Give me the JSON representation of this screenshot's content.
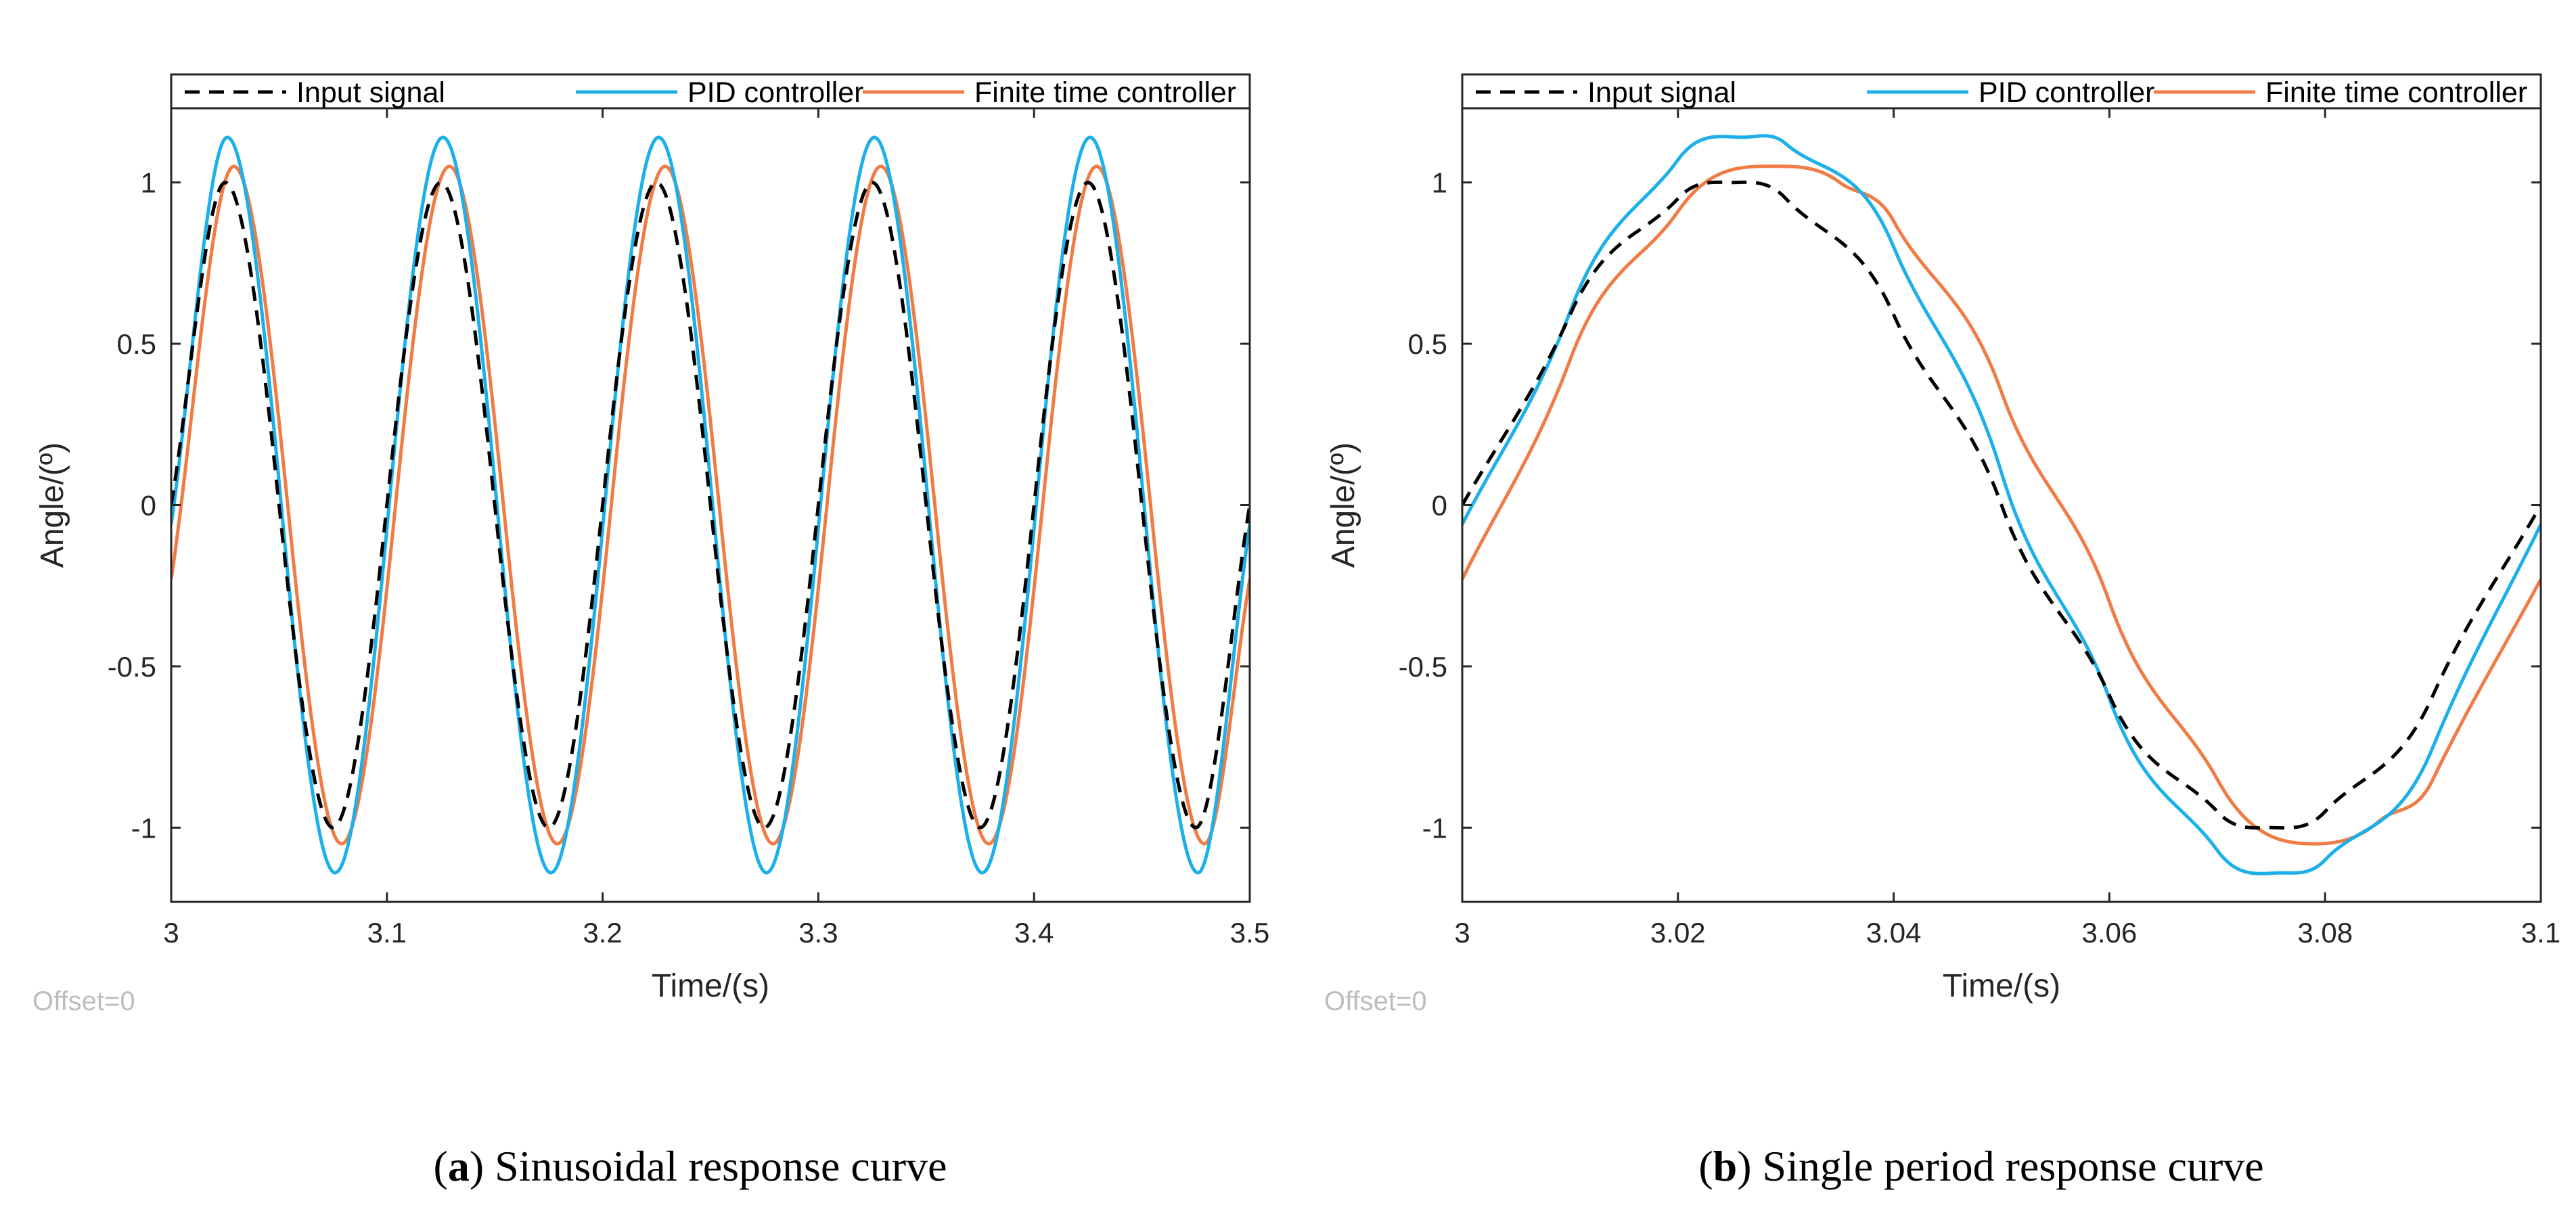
{
  "chart_data": [
    {
      "type": "line",
      "caption_letter": "a",
      "caption_open": "(",
      "caption_close": ") Sinusoidal response curve",
      "xlabel": "Time/(s)",
      "ylabel": "Angle/(º)",
      "offset_text": "Offset=0",
      "xlim": [
        3,
        3.5
      ],
      "ylim": [
        -1.23,
        1.23
      ],
      "x_ticks": [
        3,
        3.1,
        3.2,
        3.3,
        3.4,
        3.5
      ],
      "x_tick_labels": [
        "3",
        "3.1",
        "3.2",
        "3.3",
        "3.4",
        "3.5"
      ],
      "y_ticks": [
        -1,
        -0.5,
        0,
        0.5,
        1
      ],
      "y_tick_labels": [
        "-1",
        "-0.5",
        "0",
        "0.5",
        "1"
      ],
      "grid": false,
      "legend_position": "top",
      "series": [
        {
          "name": "Input signal",
          "style": "dashed",
          "color": "#000000",
          "x": [
            3.0,
            3.025,
            3.05,
            3.075,
            3.1,
            3.125,
            3.15,
            3.175,
            3.2,
            3.225,
            3.25,
            3.275,
            3.3,
            3.325,
            3.35,
            3.375,
            3.4,
            3.425,
            3.45,
            3.475,
            3.5
          ],
          "y": [
            0,
            1,
            0,
            -1,
            0,
            1,
            0,
            -1,
            0,
            1,
            0,
            -1,
            0,
            1,
            0,
            -1,
            0,
            1,
            0,
            -1,
            0
          ]
        },
        {
          "name": "PID controller",
          "style": "solid",
          "color": "#1cb0ea",
          "x": [
            3.0,
            3.026,
            3.051,
            3.076,
            3.101,
            3.126,
            3.151,
            3.176,
            3.201,
            3.226,
            3.251,
            3.276,
            3.301,
            3.326,
            3.351,
            3.376,
            3.401,
            3.426,
            3.451,
            3.476,
            3.5
          ],
          "y": [
            -0.06,
            1.14,
            0,
            -1.14,
            0,
            1.14,
            0,
            -1.14,
            0,
            1.14,
            0,
            -1.14,
            0,
            1.14,
            0,
            -1.14,
            0,
            1.14,
            0,
            -1.14,
            -0.06
          ]
        },
        {
          "name": "Finite time controller",
          "style": "solid",
          "color": "#f07c45",
          "x": [
            3.0,
            3.029,
            3.054,
            3.079,
            3.104,
            3.129,
            3.154,
            3.179,
            3.204,
            3.229,
            3.254,
            3.279,
            3.304,
            3.329,
            3.354,
            3.379,
            3.404,
            3.429,
            3.454,
            3.479,
            3.5
          ],
          "y": [
            -0.23,
            1.05,
            0,
            -1.05,
            0,
            1.05,
            0,
            -1.05,
            0,
            1.05,
            0,
            -1.05,
            0,
            1.05,
            0,
            -1.05,
            0,
            1.05,
            0,
            -1.05,
            -0.23
          ]
        }
      ]
    },
    {
      "type": "line",
      "caption_letter": "b",
      "caption_open": "(",
      "caption_close": ") Single period response curve",
      "xlabel": "Time/(s)",
      "ylabel": "Angle/(º)",
      "offset_text": "Offset=0",
      "xlim": [
        3,
        3.1
      ],
      "ylim": [
        -1.23,
        1.23
      ],
      "x_ticks": [
        3,
        3.02,
        3.04,
        3.06,
        3.08,
        3.1
      ],
      "x_tick_labels": [
        "3",
        "3.02",
        "3.04",
        "3.06",
        "3.08",
        "3.1"
      ],
      "y_ticks": [
        -1,
        -0.5,
        0,
        0.5,
        1
      ],
      "y_tick_labels": [
        "-1",
        "-0.5",
        "0",
        "0.5",
        "1"
      ],
      "grid": false,
      "legend_position": "top",
      "series": [
        {
          "name": "Input signal",
          "style": "dashed",
          "color": "#000000",
          "x": [
            3.0,
            3.01,
            3.02,
            3.025,
            3.03,
            3.04,
            3.05,
            3.06,
            3.07,
            3.075,
            3.08,
            3.09,
            3.1
          ],
          "y": [
            0,
            0.59,
            0.95,
            1.0,
            0.95,
            0.59,
            0,
            -0.59,
            -0.95,
            -1.0,
            -0.95,
            -0.59,
            0
          ]
        },
        {
          "name": "PID controller",
          "style": "solid",
          "color": "#1cb0ea",
          "x": [
            3.0,
            3.01,
            3.02,
            3.026,
            3.03,
            3.04,
            3.05,
            3.06,
            3.07,
            3.076,
            3.08,
            3.09,
            3.1
          ],
          "y": [
            -0.06,
            0.6,
            1.07,
            1.14,
            1.12,
            0.8,
            0.1,
            -0.6,
            -1.07,
            -1.14,
            -1.1,
            -0.75,
            -0.06
          ]
        },
        {
          "name": "Finite time controller",
          "style": "solid",
          "color": "#f07c45",
          "x": [
            3.0,
            3.01,
            3.02,
            3.029,
            3.035,
            3.04,
            3.05,
            3.06,
            3.07,
            3.079,
            3.085,
            3.09,
            3.1
          ],
          "y": [
            -0.23,
            0.45,
            0.91,
            1.05,
            1.0,
            0.88,
            0.35,
            -0.3,
            -0.85,
            -1.05,
            -0.98,
            -0.85,
            -0.23
          ]
        }
      ]
    }
  ]
}
